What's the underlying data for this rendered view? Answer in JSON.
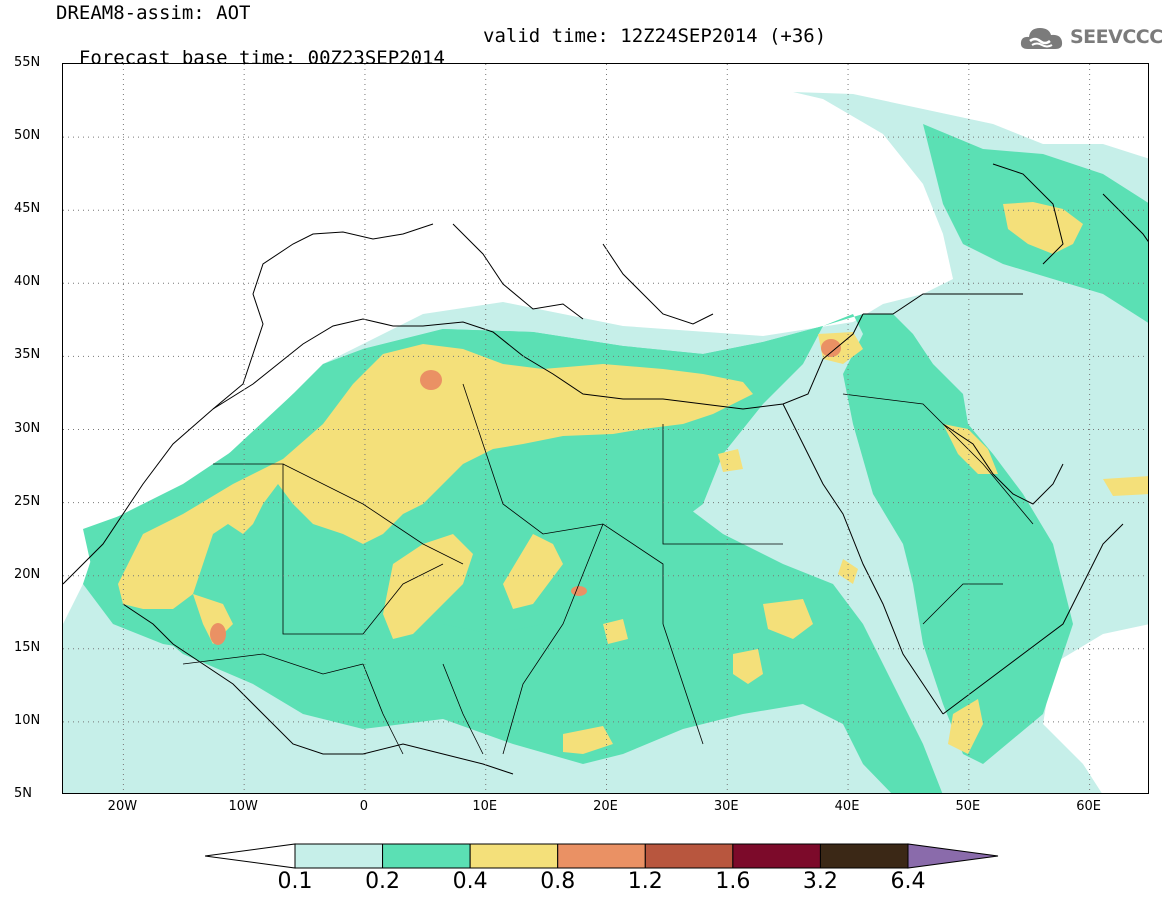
{
  "title": {
    "line1": "DREAM8-assim: AOT",
    "base_time": "Forecast base time: 00Z23SEP2014",
    "valid_time": "valid time: 12Z24SEP2014 (+36)"
  },
  "logo": {
    "text": "SEEVCCC",
    "icon": "cloud-icon"
  },
  "map": {
    "lat_range": [
      5,
      55
    ],
    "lon_range": [
      -25,
      65
    ],
    "grid": "dotted",
    "lat_labels": [
      "55N",
      "50N",
      "45N",
      "40N",
      "35N",
      "30N",
      "25N",
      "20N",
      "15N",
      "10N",
      "5N"
    ],
    "lat_values": [
      55,
      50,
      45,
      40,
      35,
      30,
      25,
      20,
      15,
      10,
      5
    ],
    "lon_labels": [
      "20W",
      "10W",
      "0",
      "10E",
      "20E",
      "30E",
      "40E",
      "50E",
      "60E"
    ],
    "lon_values": [
      -20,
      -10,
      0,
      10,
      20,
      30,
      40,
      50,
      60
    ]
  },
  "colorbar": {
    "labels": [
      "0.1",
      "0.2",
      "0.4",
      "0.8",
      "1.2",
      "1.6",
      "3.2",
      "6.4"
    ],
    "colors": [
      "#c6efe9",
      "#5be0b4",
      "#f4e07a",
      "#ea9164",
      "#b8563e",
      "#7c0a2a",
      "#3b2816"
    ],
    "under_color": "#ffffff",
    "over_color": "#8a6bab"
  },
  "layers": {
    "aot_0_1": "#c6efe9",
    "aot_0_2": "#5be0b4",
    "aot_0_4": "#f4e07a",
    "aot_0_8": "#ea9164"
  }
}
